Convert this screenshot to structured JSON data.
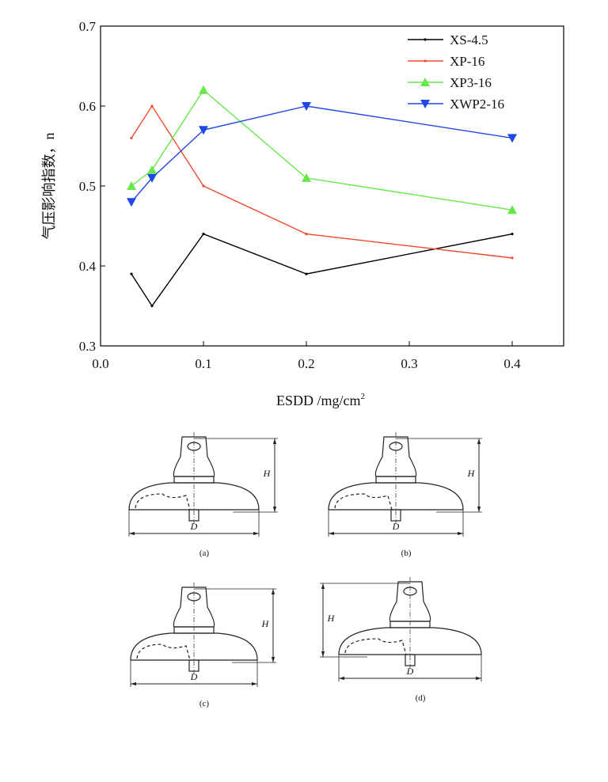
{
  "chart_data": {
    "type": "line",
    "y_label": "气压影响指数，n",
    "x_label": "ESDD /mg/cm",
    "x_label_sup": "2",
    "x": [
      0.03,
      0.05,
      0.1,
      0.2,
      0.4
    ],
    "xlim": [
      0,
      0.45
    ],
    "xticks": [
      {
        "value": 0,
        "label": "0.0"
      },
      0.1,
      0.2,
      0.3,
      0.4
    ],
    "ylim": [
      0.3,
      0.7
    ],
    "yticks": [
      0.3,
      0.4,
      0.5,
      0.6,
      0.7
    ],
    "legend": "top-right",
    "series": [
      {
        "name": "XS-4.5",
        "color": "#000000",
        "marker": "dot",
        "values": [
          0.39,
          0.35,
          0.44,
          0.39,
          0.44
        ]
      },
      {
        "name": "XP-16",
        "color": "#f04a2a",
        "marker": "dot",
        "values": [
          0.56,
          0.6,
          0.5,
          0.44,
          0.41
        ]
      },
      {
        "name": "XP3-16",
        "color": "#66e84a",
        "marker": "triangle-up",
        "values": [
          0.5,
          0.52,
          0.62,
          0.51,
          0.47
        ]
      },
      {
        "name": "XWP2-16",
        "color": "#1f47e8",
        "marker": "triangle-down",
        "values": [
          0.48,
          0.51,
          0.57,
          0.6,
          0.56
        ]
      }
    ]
  },
  "figure": {
    "panels": [
      {
        "label": "(a)",
        "height_label": "H",
        "diameter_label": "D"
      },
      {
        "label": "(b)",
        "height_label": "H",
        "diameter_label": "D"
      },
      {
        "label": "(c)",
        "height_label": "H",
        "diameter_label": "D"
      },
      {
        "label": "(d)",
        "height_label": "H",
        "diameter_label": "D"
      }
    ]
  }
}
